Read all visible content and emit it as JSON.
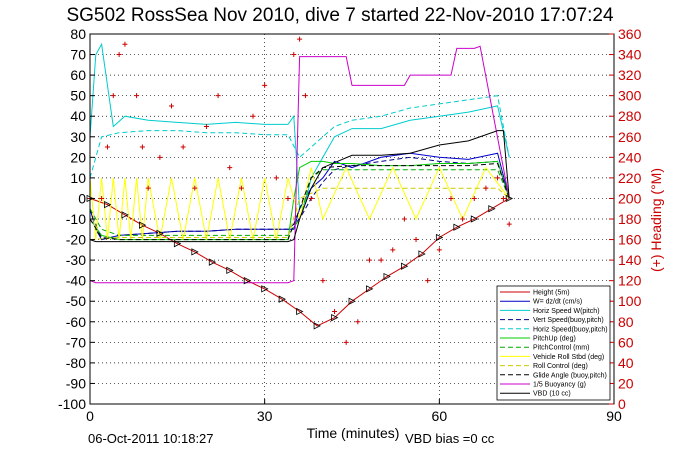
{
  "chart_data": {
    "type": "line",
    "title": "SG502 RossSea Nov 2010, dive 7 started 22-Nov-2010 17:07:24",
    "xlabel": "Time (minutes)",
    "ylabel": "",
    "y2label": "(+) Heading (°M)",
    "xlim": [
      0,
      90
    ],
    "ylim": [
      -100,
      80
    ],
    "y2lim": [
      0,
      360
    ],
    "xticks": [
      "0",
      "30",
      "60",
      "90"
    ],
    "yticks": [
      "80",
      "70",
      "60",
      "50",
      "40",
      "30",
      "20",
      "10",
      "0",
      "-10",
      "-20",
      "-30",
      "-40",
      "-50",
      "-60",
      "-70",
      "-80",
      "-90",
      "-100"
    ],
    "y2ticks": [
      "360",
      "340",
      "320",
      "300",
      "280",
      "260",
      "240",
      "220",
      "200",
      "180",
      "160",
      "140",
      "120",
      "100",
      "80",
      "60",
      "40",
      "20",
      "0"
    ],
    "grid": true,
    "legend_position": "bottom-right",
    "footer_date": "06-Oct-2011 10:18:27",
    "footer_bias": "VBD bias =0 cc",
    "series": [
      {
        "name": "Height (5m)",
        "color": "#cc0000",
        "style": "solid",
        "x": [
          0,
          3,
          6,
          9,
          12,
          15,
          18,
          21,
          24,
          27,
          30,
          33,
          36,
          39,
          42,
          45,
          48,
          51,
          54,
          57,
          60,
          63,
          66,
          69,
          72
        ],
        "y": [
          0,
          -3,
          -8,
          -13,
          -17,
          -22,
          -26,
          -31,
          -35,
          -40,
          -44,
          -49,
          -55,
          -62,
          -58,
          -50,
          -44,
          -38,
          -33,
          -27,
          -19,
          -14,
          -10,
          -5,
          0
        ]
      },
      {
        "name": "W= dz/dt (cm/s)",
        "color": "#0000cc",
        "style": "solid",
        "x": [
          0,
          1,
          2,
          5,
          10,
          15,
          20,
          25,
          30,
          34,
          35,
          36,
          38,
          40,
          42,
          45,
          50,
          55,
          60,
          65,
          70,
          72
        ],
        "y": [
          -5,
          -15,
          -20,
          -18,
          -17,
          -16,
          -16,
          -15,
          -15,
          -15,
          -15,
          -5,
          5,
          10,
          18,
          15,
          20,
          22,
          20,
          19,
          22,
          0
        ]
      },
      {
        "name": "Horiz Speed W(pitch)",
        "color": "#00cccc",
        "style": "solid",
        "x": [
          0,
          1,
          2,
          4,
          6,
          10,
          15,
          20,
          25,
          30,
          34,
          35,
          36,
          37,
          38,
          40,
          42,
          45,
          50,
          55,
          60,
          65,
          70,
          72
        ],
        "y": [
          30,
          70,
          75,
          35,
          40,
          38,
          37,
          36,
          37,
          36,
          36,
          40,
          -5,
          -2,
          10,
          20,
          30,
          34,
          34,
          38,
          40,
          42,
          45,
          20
        ]
      },
      {
        "name": "Vert Speed(buoy,pitch)",
        "color": "#000088",
        "style": "dashed",
        "x": [
          0,
          2,
          5,
          10,
          15,
          20,
          25,
          30,
          34,
          36,
          38,
          40,
          42,
          45,
          50,
          55,
          60,
          65,
          70,
          72
        ],
        "y": [
          -5,
          -20,
          -18,
          -17,
          -16,
          -16,
          -15,
          -15,
          -15,
          -10,
          0,
          8,
          14,
          16,
          18,
          20,
          18,
          17,
          18,
          0
        ]
      },
      {
        "name": "Horiz Speed(buoy,pitch)",
        "color": "#00cccc",
        "style": "dashed",
        "x": [
          0,
          2,
          5,
          10,
          15,
          20,
          25,
          30,
          34,
          36,
          38,
          40,
          42,
          45,
          50,
          55,
          60,
          65,
          70,
          72
        ],
        "y": [
          10,
          30,
          32,
          33,
          33,
          32,
          32,
          31,
          31,
          20,
          25,
          30,
          35,
          38,
          40,
          44,
          46,
          48,
          50,
          20
        ]
      },
      {
        "name": "PitchUp (deg)",
        "color": "#00cc00",
        "style": "solid",
        "x": [
          0,
          2,
          5,
          10,
          15,
          20,
          25,
          30,
          34,
          35,
          36,
          38,
          40,
          42,
          45,
          50,
          55,
          60,
          65,
          70,
          72
        ],
        "y": [
          -10,
          -18,
          -20,
          -20,
          -20,
          -20,
          -20,
          -20,
          -20,
          0,
          15,
          18,
          18,
          17,
          17,
          16,
          16,
          17,
          17,
          18,
          0
        ]
      },
      {
        "name": "PitchControl (mm)",
        "color": "#00aa00",
        "style": "dashed",
        "x": [
          0,
          2,
          5,
          10,
          15,
          20,
          25,
          30,
          34,
          36,
          38,
          40,
          45,
          50,
          55,
          60,
          65,
          70,
          72
        ],
        "y": [
          -5,
          -15,
          -18,
          -18,
          -18,
          -18,
          -18,
          -18,
          -18,
          -10,
          10,
          14,
          14,
          14,
          14,
          14,
          14,
          14,
          0
        ]
      },
      {
        "name": "Vehicle Roll Stbd (deg)",
        "color": "#ffff00",
        "style": "solid",
        "x": [
          0,
          1,
          2,
          3,
          4,
          5,
          6,
          7,
          8,
          9,
          10,
          12,
          14,
          16,
          18,
          20,
          22,
          24,
          26,
          28,
          30,
          32,
          34,
          36,
          38,
          40,
          44,
          48,
          52,
          56,
          60,
          64,
          68,
          72
        ],
        "y": [
          10,
          -20,
          10,
          -20,
          10,
          -20,
          10,
          -20,
          10,
          -20,
          10,
          -20,
          10,
          -20,
          10,
          -20,
          10,
          -20,
          10,
          -20,
          10,
          -20,
          10,
          -10,
          15,
          -10,
          15,
          -10,
          15,
          -10,
          15,
          -10,
          15,
          0
        ]
      },
      {
        "name": "Roll Control (deg)",
        "color": "#cccc00",
        "style": "dashed",
        "x": [
          0,
          5,
          10,
          15,
          20,
          25,
          30,
          34,
          36,
          40,
          45,
          50,
          55,
          60,
          65,
          70,
          72
        ],
        "y": [
          -20,
          -19,
          -19,
          -19,
          -19,
          -19,
          -19,
          -19,
          0,
          5,
          5,
          5,
          5,
          5,
          5,
          5,
          0
        ]
      },
      {
        "name": "Glide Angle (buoy,pitch)",
        "color": "#000000",
        "style": "dashed",
        "x": [
          0,
          2,
          5,
          10,
          15,
          20,
          25,
          30,
          34,
          36,
          38,
          40,
          45,
          50,
          55,
          60,
          65,
          70,
          72
        ],
        "y": [
          -10,
          -19,
          -20,
          -20,
          -20,
          -20,
          -20,
          -20,
          -20,
          -5,
          10,
          15,
          16,
          16,
          16,
          16,
          16,
          17,
          0
        ]
      },
      {
        "name": "1/5 Buoyancy (g)",
        "color": "#cc00cc",
        "style": "solid",
        "x": [
          0,
          1,
          2,
          34,
          35,
          36,
          44,
          45,
          54,
          55,
          62,
          63,
          66,
          67,
          72
        ],
        "y": [
          -40,
          -41,
          -41,
          -41,
          -40,
          69,
          69,
          55,
          55,
          60,
          60,
          73,
          73,
          74,
          0
        ]
      },
      {
        "name": "VBD (10 cc)",
        "color": "#000000",
        "style": "solid",
        "x": [
          0,
          1,
          2,
          34,
          35,
          36,
          38,
          40,
          45,
          48,
          50,
          55,
          60,
          65,
          70,
          71,
          72
        ],
        "y": [
          -20,
          -21,
          -21,
          -21,
          -20,
          -10,
          5,
          15,
          21,
          21,
          21,
          22,
          26,
          28,
          33,
          33,
          0
        ]
      }
    ],
    "heading": {
      "name": "Heading",
      "color": "#cc0000",
      "marker": "+",
      "x": [
        0,
        2,
        3,
        4,
        5,
        6,
        8,
        9,
        10,
        12,
        14,
        16,
        18,
        20,
        22,
        24,
        26,
        28,
        30,
        32,
        34,
        35,
        36,
        37,
        38,
        40,
        42,
        44,
        46,
        48,
        50,
        52,
        54,
        56,
        58,
        60,
        62,
        64,
        66,
        68,
        70,
        71,
        72
      ],
      "y": [
        200,
        200,
        250,
        300,
        340,
        350,
        300,
        250,
        210,
        240,
        290,
        250,
        210,
        270,
        300,
        230,
        210,
        280,
        310,
        220,
        200,
        340,
        355,
        300,
        200,
        120,
        90,
        60,
        80,
        140,
        140,
        150,
        180,
        160,
        120,
        150,
        200,
        180,
        200,
        210,
        220,
        200,
        175
      ]
    }
  },
  "legend_entries": [
    "Height (5m)",
    "W= dz/dt (cm/s)",
    "Horiz Speed W(pitch)",
    "Vert Speed(buoy,pitch)",
    "Horiz Speed(buoy,pitch)",
    "PitchUp (deg)",
    "PitchControl (mm)",
    "Vehicle Roll Stbd (deg)",
    "Roll Control (deg)",
    "Glide Angle (buoy,pitch)",
    "1/5 Buoyancy (g)",
    "VBD (10 cc)"
  ]
}
